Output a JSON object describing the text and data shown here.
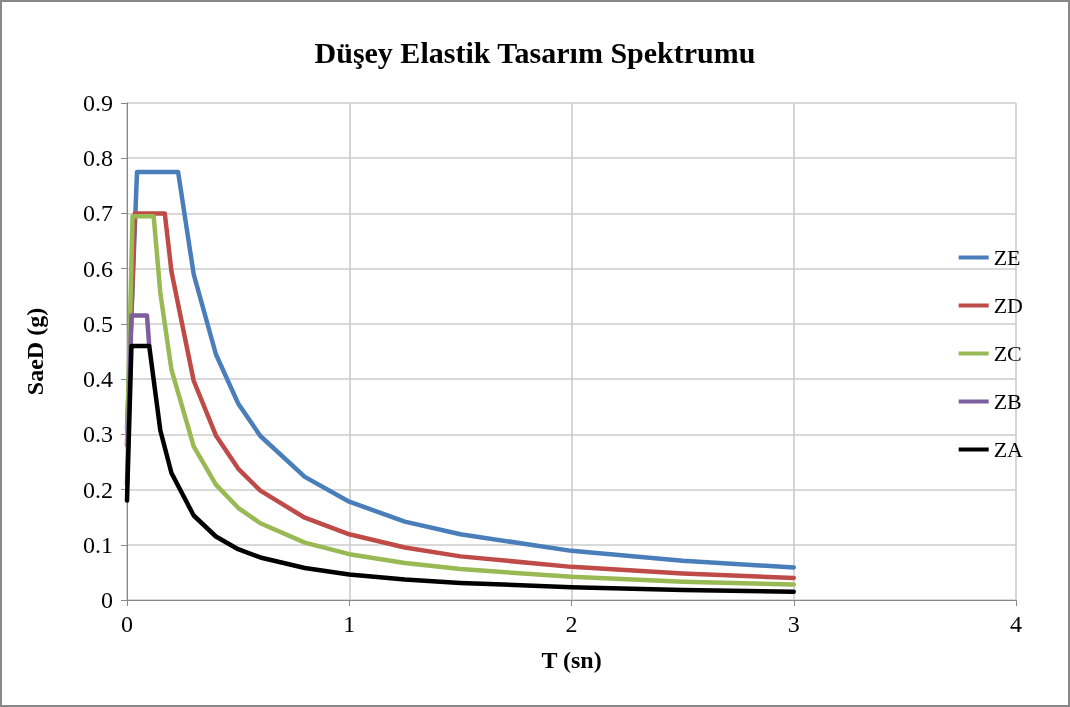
{
  "chart_data": {
    "type": "line",
    "title": "Düşey Elastik Tasarım Spektrumu",
    "xlabel": "T (sn)",
    "ylabel": "SaeD (g)",
    "xlim": [
      0,
      4
    ],
    "xticks": [
      0,
      1,
      2,
      3,
      4
    ],
    "ylim": [
      0,
      0.9
    ],
    "yticks": [
      0,
      0.1,
      0.2,
      0.3,
      0.4,
      0.5,
      0.6,
      0.7,
      0.8,
      0.9
    ],
    "grid": true,
    "legend": "right",
    "marker": "none",
    "line_style": "solid",
    "series": [
      {
        "name": "ZE",
        "color": "#4a7ebb",
        "x": [
          0,
          0.045,
          0.23,
          0.3,
          0.4,
          0.5,
          0.6,
          0.8,
          1,
          1.25,
          1.5,
          2,
          2.5,
          3
        ],
        "values": [
          0.31,
          0.775,
          0.775,
          0.59,
          0.445,
          0.356,
          0.297,
          0.223,
          0.178,
          0.142,
          0.119,
          0.089,
          0.071,
          0.059
        ]
      },
      {
        "name": "ZD",
        "color": "#be4b48",
        "x": [
          0,
          0.035,
          0.17,
          0.2,
          0.3,
          0.4,
          0.5,
          0.6,
          0.8,
          1,
          1.25,
          1.5,
          2,
          2.5,
          3
        ],
        "values": [
          0.28,
          0.7,
          0.7,
          0.595,
          0.397,
          0.298,
          0.238,
          0.198,
          0.149,
          0.119,
          0.095,
          0.079,
          0.06,
          0.048,
          0.04
        ]
      },
      {
        "name": "ZC",
        "color": "#98b954",
        "x": [
          0,
          0.025,
          0.12,
          0.15,
          0.2,
          0.3,
          0.4,
          0.5,
          0.6,
          0.8,
          1,
          1.25,
          1.5,
          2,
          2.5,
          3
        ],
        "values": [
          0.28,
          0.695,
          0.695,
          0.556,
          0.417,
          0.278,
          0.209,
          0.167,
          0.139,
          0.104,
          0.083,
          0.067,
          0.056,
          0.042,
          0.033,
          0.028
        ]
      },
      {
        "name": "ZB",
        "color": "#7d5fa0",
        "x": [
          0,
          0.02,
          0.09,
          0.1
        ],
        "values": [
          0.21,
          0.515,
          0.515,
          0.46
        ]
      },
      {
        "name": "ZA",
        "color": "#000000",
        "x": [
          0,
          0.02,
          0.1,
          0.15,
          0.2,
          0.3,
          0.4,
          0.5,
          0.6,
          0.8,
          1,
          1.25,
          1.5,
          2,
          2.5,
          3
        ],
        "values": [
          0.18,
          0.46,
          0.46,
          0.307,
          0.23,
          0.153,
          0.115,
          0.092,
          0.077,
          0.058,
          0.046,
          0.037,
          0.031,
          0.023,
          0.018,
          0.015
        ]
      }
    ]
  }
}
